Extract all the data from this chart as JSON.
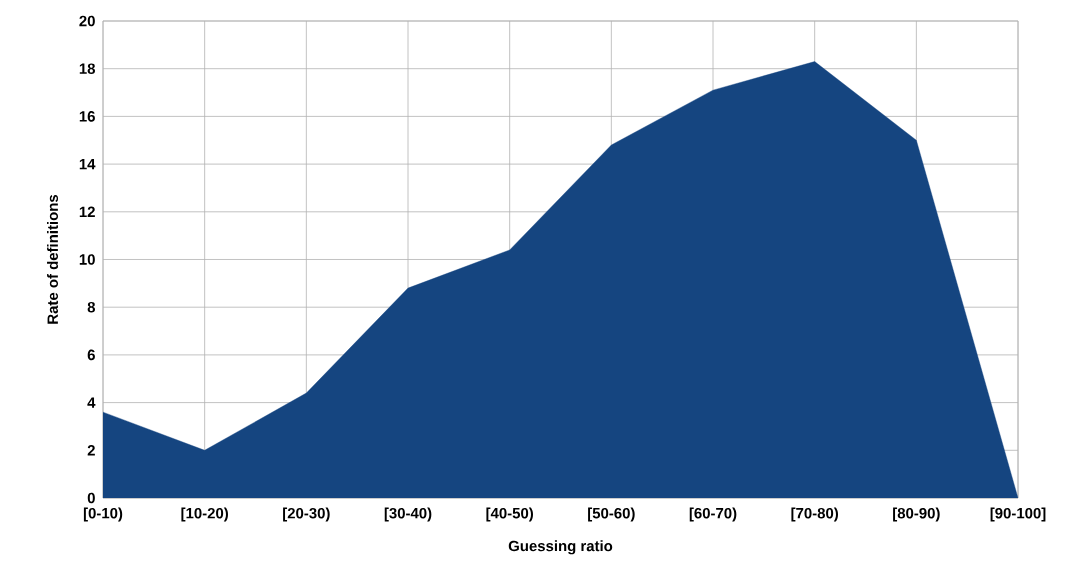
{
  "chart_data": {
    "type": "area",
    "xlabel": "Guessing ratio",
    "ylabel": "Rate of definitions",
    "categories": [
      "[0-10)",
      "[10-20)",
      "[20-30)",
      "[30-40)",
      "[40-50)",
      "[50-60)",
      "[60-70)",
      "[70-80)",
      "[80-90)",
      "[90-100]"
    ],
    "values": [
      3.6,
      2.0,
      4.4,
      8.8,
      10.4,
      14.8,
      17.1,
      18.3,
      15.0,
      0
    ],
    "color": "#154580",
    "ylim": [
      0,
      20
    ],
    "yticks": [
      0,
      2,
      4,
      6,
      8,
      10,
      12,
      14,
      16,
      18,
      20
    ],
    "grid": true
  }
}
